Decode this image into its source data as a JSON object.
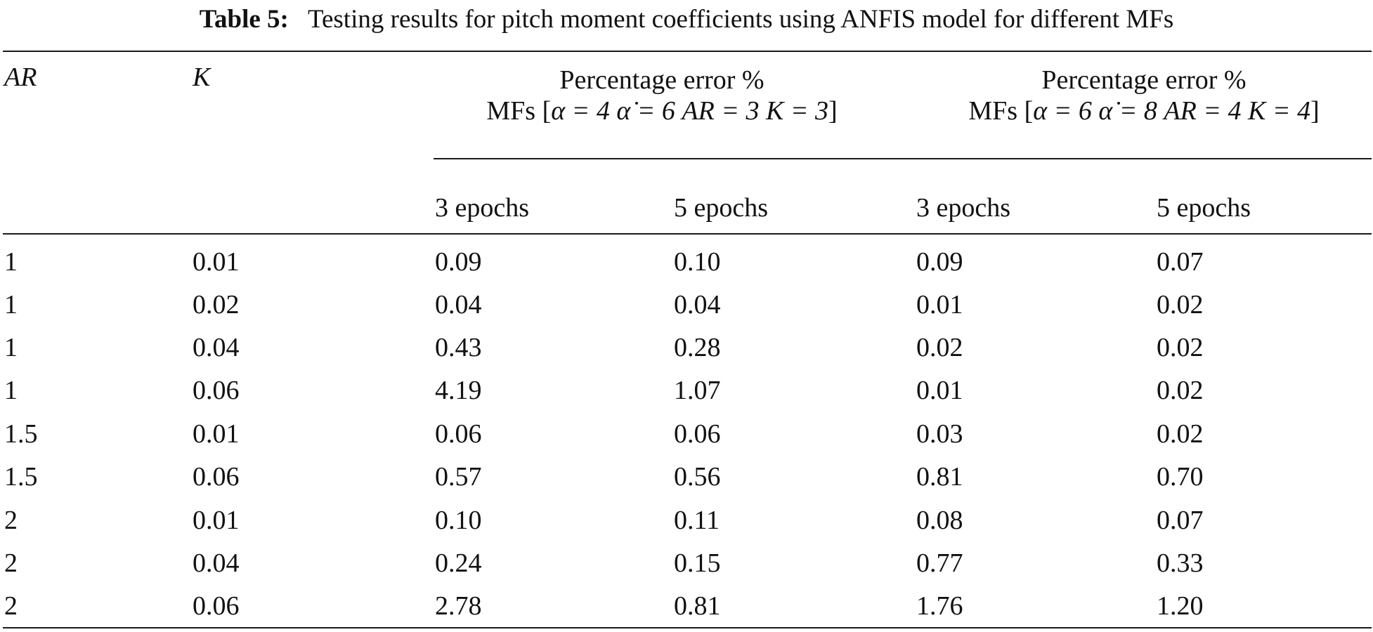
{
  "caption": {
    "label": "Table 5:",
    "text": "Testing results for pitch moment coefficients using ANFIS model for different MFs"
  },
  "table": {
    "col_ar": "AR",
    "col_k": "K",
    "group1": {
      "title": "Percentage error %",
      "mfs_prefix": "MFs [",
      "mfs_math": "α = 4 α̇ = 6 AR = 3 K = 3",
      "mfs_suffix": "]"
    },
    "group2": {
      "title": "Percentage error %",
      "mfs_prefix": "MFs [",
      "mfs_math": "α = 6 α̇ = 8 AR = 4 K = 4",
      "mfs_suffix": "]"
    },
    "sub_headers": [
      "3 epochs",
      "5 epochs",
      "3 epochs",
      "5 epochs"
    ],
    "rows": [
      [
        "1",
        "0.01",
        "0.09",
        "0.10",
        "0.09",
        "0.07"
      ],
      [
        "1",
        "0.02",
        "0.04",
        "0.04",
        "0.01",
        "0.02"
      ],
      [
        "1",
        "0.04",
        "0.43",
        "0.28",
        "0.02",
        "0.02"
      ],
      [
        "1",
        "0.06",
        "4.19",
        "1.07",
        "0.01",
        "0.02"
      ],
      [
        "1.5",
        "0.01",
        "0.06",
        "0.06",
        "0.03",
        "0.02"
      ],
      [
        "1.5",
        "0.06",
        "0.57",
        "0.56",
        "0.81",
        "0.70"
      ],
      [
        "2",
        "0.01",
        "0.10",
        "0.11",
        "0.08",
        "0.07"
      ],
      [
        "2",
        "0.04",
        "0.24",
        "0.15",
        "0.77",
        "0.33"
      ],
      [
        "2",
        "0.06",
        "2.78",
        "0.81",
        "1.76",
        "1.20"
      ]
    ]
  }
}
